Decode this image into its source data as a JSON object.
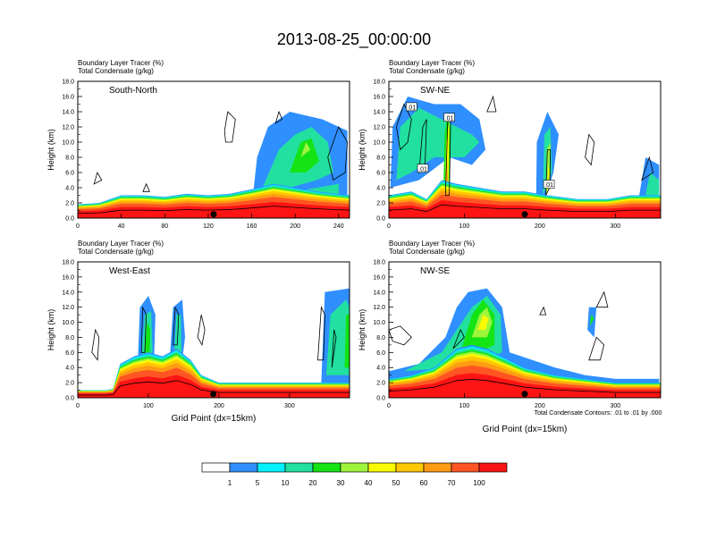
{
  "title": "2013-08-25_00:00:00",
  "colors": {
    "white": "#ffffff",
    "blue": "#2f8fff",
    "cyan": "#00f2ff",
    "teal": "#22e0a0",
    "green": "#14e414",
    "lime": "#9ef53c",
    "yellow": "#fbfb00",
    "gold": "#ffc800",
    "orange": "#ff9b14",
    "redorange": "#ff5523",
    "red": "#ff1414"
  },
  "chart_data": [
    {
      "type": "heatmap",
      "label_line1": "Boundary Layer Tracer    (%)",
      "label_line2": "Total Condensate    (g/kg)",
      "section": "South-North",
      "xlim": [
        0,
        250
      ],
      "xticks": [
        "0",
        "40",
        "80",
        "120",
        "160",
        "200",
        "240"
      ],
      "xtick_values": [
        0,
        40,
        80,
        120,
        160,
        200,
        240
      ],
      "ylim": [
        0,
        18
      ],
      "yticks": [
        "0.0",
        "2.0",
        "4.0",
        "6.0",
        "8.0",
        "10.0",
        "12.0",
        "14.0",
        "16.0",
        "18.0"
      ],
      "ylabel": "Height (km)",
      "xlabel": "",
      "marker_x": 125,
      "contour_labels": []
    },
    {
      "type": "heatmap",
      "label_line1": "Boundary Layer Tracer    (%)",
      "label_line2": "Total Condensate    (g/kg)",
      "section": "SW-NE",
      "xlim": [
        0,
        360
      ],
      "xticks": [
        "0",
        "100",
        "200",
        "300"
      ],
      "xtick_values": [
        0,
        100,
        200,
        300
      ],
      "ylim": [
        0,
        18
      ],
      "yticks": [
        "0.0",
        "2.0",
        "4.0",
        "6.0",
        "8.0",
        "10.0",
        "12.0",
        "14.0",
        "16.0",
        "18.0"
      ],
      "ylabel": "Height (km)",
      "xlabel": "",
      "marker_x": 180,
      "contour_labels": [
        ".01",
        ".01",
        ".01",
        ".01"
      ]
    },
    {
      "type": "heatmap",
      "label_line1": "Boundary Layer Tracer    (%)",
      "label_line2": "Total Condensate    (g/kg)",
      "section": "West-East",
      "xlim": [
        0,
        385
      ],
      "xticks": [
        "0",
        "100",
        "200",
        "300"
      ],
      "xtick_values": [
        0,
        100,
        200,
        300
      ],
      "ylim": [
        0,
        18
      ],
      "yticks": [
        "0.0",
        "2.0",
        "4.0",
        "6.0",
        "8.0",
        "10.0",
        "12.0",
        "14.0",
        "16.0",
        "18.0"
      ],
      "ylabel": "Height (km)",
      "xlabel": "Grid Point (dx=15km)",
      "marker_x": 192,
      "contour_labels": []
    },
    {
      "type": "heatmap",
      "label_line1": "Boundary Layer Tracer    (%)",
      "label_line2": "Total Condensate    (g/kg)",
      "section": "NW-SE",
      "xlim": [
        0,
        360
      ],
      "xticks": [
        "0",
        "100",
        "200",
        "300"
      ],
      "xtick_values": [
        0,
        100,
        200,
        300
      ],
      "ylim": [
        0,
        18
      ],
      "yticks": [
        "0.0",
        "2.0",
        "4.0",
        "6.0",
        "8.0",
        "10.0",
        "12.0",
        "14.0",
        "16.0",
        "18.0"
      ],
      "ylabel": "Height (km)",
      "xlabel": "Grid Point (dx=15km)",
      "marker_x": 180,
      "contour_labels": []
    }
  ],
  "contour_note": "Total Condensate Contours: .01 to .01 by .000",
  "colorbar": {
    "labels": [
      "1",
      "5",
      "10",
      "20",
      "30",
      "40",
      "50",
      "60",
      "70",
      "100"
    ]
  }
}
